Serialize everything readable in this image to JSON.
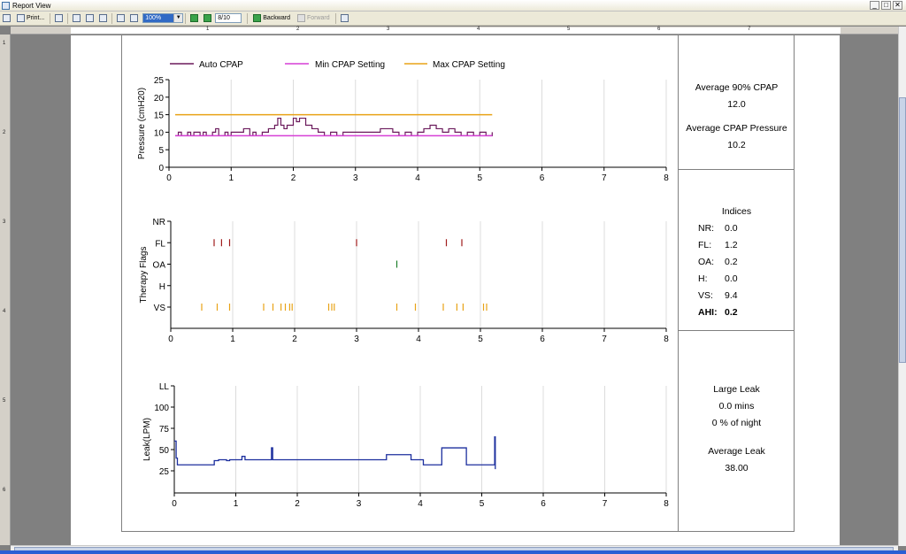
{
  "window": {
    "title": "Report View",
    "minimize": "_",
    "maximize": "□",
    "close": "✕"
  },
  "toolbar": {
    "print_label": "Print...",
    "zoom_value": "100%",
    "page_value": "8/10",
    "backward_label": "Backward",
    "forward_label": "Forward"
  },
  "ruler": {
    "marks": [
      "1",
      "2",
      "3",
      "4",
      "5",
      "6",
      "7"
    ],
    "v_marks": [
      "1",
      "2",
      "3",
      "4",
      "5",
      "6"
    ]
  },
  "legend": {
    "auto_cpap": "Auto CPAP",
    "auto_cpap_color": "#6b1a5c",
    "min_cpap": "Min CPAP Setting",
    "min_cpap_color": "#d63fd6",
    "max_cpap": "Max CPAP Setting",
    "max_cpap_color": "#e8a317"
  },
  "chart_data": [
    {
      "type": "line",
      "ylabel": "Pressure (cmH20)",
      "xlim": [
        0,
        8
      ],
      "ylim": [
        0,
        25
      ],
      "x_ticks": [
        0,
        1,
        2,
        3,
        4,
        5,
        6,
        7,
        8
      ],
      "y_ticks": [
        0,
        5,
        10,
        15,
        20,
        25
      ],
      "grid": "vertical",
      "series": [
        {
          "name": "Auto CPAP",
          "color": "#6b1a5c",
          "x": [
            0.1,
            0.15,
            0.2,
            0.3,
            0.35,
            0.4,
            0.5,
            0.55,
            0.6,
            0.7,
            0.75,
            0.8,
            0.9,
            0.95,
            1.0,
            1.1,
            1.2,
            1.3,
            1.35,
            1.4,
            1.5,
            1.6,
            1.7,
            1.75,
            1.8,
            1.85,
            1.9,
            2.0,
            2.05,
            2.1,
            2.2,
            2.3,
            2.4,
            2.5,
            2.6,
            2.7,
            2.8,
            2.9,
            3.0,
            3.2,
            3.4,
            3.6,
            3.7,
            3.8,
            3.9,
            4.0,
            4.1,
            4.2,
            4.3,
            4.4,
            4.5,
            4.6,
            4.7,
            4.8,
            4.9,
            5.0,
            5.1,
            5.2
          ],
          "y": [
            9,
            10,
            9,
            10,
            9,
            10,
            9,
            10,
            9,
            10,
            11,
            9,
            10,
            9,
            10,
            10,
            11,
            9,
            10,
            9,
            10,
            11,
            12,
            14,
            12,
            11,
            12,
            14,
            13,
            14,
            12,
            11,
            10,
            9,
            10,
            9,
            10,
            10,
            10,
            10,
            11,
            10,
            9,
            10,
            9,
            10,
            11,
            12,
            11,
            10,
            11,
            10,
            9,
            10,
            9,
            10,
            9,
            10
          ]
        },
        {
          "name": "Min CPAP Setting",
          "color": "#d63fd6",
          "x": [
            0.1,
            5.2
          ],
          "y": [
            9,
            9
          ]
        },
        {
          "name": "Max CPAP Setting",
          "color": "#e8a317",
          "x": [
            0.1,
            5.2
          ],
          "y": [
            15,
            15
          ]
        }
      ]
    },
    {
      "type": "scatter",
      "ylabel": "Therapy Flags",
      "xlim": [
        0,
        8
      ],
      "x_ticks": [
        0,
        1,
        2,
        3,
        4,
        5,
        6,
        7,
        8
      ],
      "categories": [
        "NR",
        "FL",
        "OA",
        "H",
        "VS"
      ],
      "grid": "vertical",
      "series": [
        {
          "name": "FL",
          "color": "#a01c1c",
          "x": [
            0.7,
            0.82,
            0.95,
            3.0,
            4.45,
            4.7
          ]
        },
        {
          "name": "OA",
          "color": "#1d7f2a",
          "x": [
            3.65
          ]
        },
        {
          "name": "VS",
          "color": "#e8a317",
          "x": [
            0.5,
            0.75,
            0.95,
            1.5,
            1.65,
            1.78,
            1.85,
            1.92,
            1.96,
            2.55,
            2.6,
            2.64,
            3.65,
            3.95,
            4.4,
            4.62,
            4.72,
            5.05,
            5.1
          ]
        }
      ]
    },
    {
      "type": "line",
      "ylabel": "Leak(LPM)",
      "xlim": [
        0,
        8
      ],
      "ylim": [
        25,
        125
      ],
      "x_ticks": [
        0,
        1,
        2,
        3,
        4,
        5,
        6,
        7,
        8
      ],
      "y_ticks": [
        "25",
        "50",
        "75",
        "100",
        "LL"
      ],
      "grid": "vertical",
      "series": [
        {
          "name": "Leak",
          "color": "#1c2f9e",
          "x": [
            0.0,
            0.03,
            0.05,
            0.6,
            0.65,
            0.7,
            0.72,
            0.8,
            0.85,
            0.9,
            1.0,
            1.05,
            1.1,
            1.15,
            1.3,
            1.5,
            1.55,
            1.58,
            1.6,
            1.62,
            1.7,
            1.9,
            2.3,
            2.6,
            3.0,
            3.3,
            3.45,
            3.8,
            3.85,
            4.0,
            4.05,
            4.3,
            4.35,
            4.7,
            4.75,
            5.0,
            5.2,
            5.21,
            5.22
          ],
          "y": [
            60,
            40,
            32,
            32,
            37,
            37,
            38,
            38,
            37,
            38,
            38,
            38,
            42,
            38,
            38,
            38,
            38,
            52,
            38,
            38,
            38,
            38,
            38,
            38,
            38,
            38,
            44,
            44,
            38,
            38,
            32,
            32,
            52,
            52,
            32,
            32,
            32,
            65,
            27
          ]
        }
      ]
    }
  ],
  "sidebar": {
    "cpap": {
      "avg90_label": "Average 90% CPAP",
      "avg90_value": "12.0",
      "avg_label": "Average CPAP Pressure",
      "avg_value": "10.2"
    },
    "indices": {
      "title": "Indices",
      "rows": [
        {
          "k": "NR:",
          "v": "0.0"
        },
        {
          "k": "FL:",
          "v": "1.2"
        },
        {
          "k": "OA:",
          "v": "0.2"
        },
        {
          "k": "H:",
          "v": "0.0"
        },
        {
          "k": "VS:",
          "v": "9.4"
        },
        {
          "k": "AHI:",
          "v": "0.2"
        }
      ]
    },
    "leak": {
      "large_label": "Large Leak",
      "mins": "0.0 mins",
      "night": "0 % of night",
      "avg_label": "Average Leak",
      "avg_value": "38.00"
    }
  }
}
